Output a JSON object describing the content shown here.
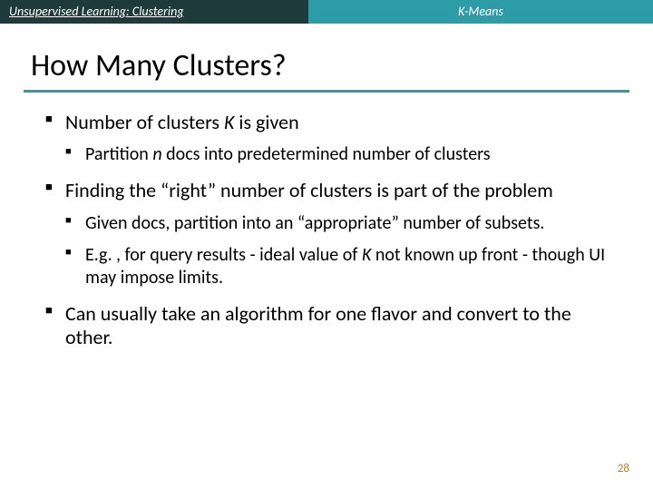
{
  "header": {
    "left": "Unsupervised Learning: Clustering",
    "right": "K-Means",
    "left_bg": "#1f3a3a",
    "right_bg": "#2e9ca6",
    "text_color": "#ffffff"
  },
  "title": {
    "text": "How Many Clusters?",
    "fontsize": 34,
    "underline_color": "#2e9ca6"
  },
  "bullets": [
    {
      "prefix": "Number of clusters ",
      "italic": "K",
      "suffix": " is given",
      "children": [
        {
          "prefix": "Partition ",
          "italic": "n",
          "suffix": " docs into predetermined number of clusters"
        }
      ]
    },
    {
      "prefix": "Finding the “right” number of clusters is part of the problem",
      "italic": "",
      "suffix": "",
      "children": [
        {
          "prefix": "Given docs, partition into an “appropriate” number of subsets.",
          "italic": "",
          "suffix": ""
        },
        {
          "prefix": "E.g. , for query results - ideal value of ",
          "italic": "K",
          "suffix": " not known up front - though UI may impose limits."
        }
      ]
    },
    {
      "prefix": "Can usually take an algorithm for one flavor and convert to the other.",
      "italic": "",
      "suffix": "",
      "children": []
    }
  ],
  "page_number": "28",
  "colors": {
    "background": "#ffffff",
    "text": "#000000",
    "page_num": "#c07830"
  },
  "typography": {
    "title_fontsize": 34,
    "lvl1_fontsize": 22,
    "lvl2_fontsize": 20,
    "header_fontsize": 14
  }
}
